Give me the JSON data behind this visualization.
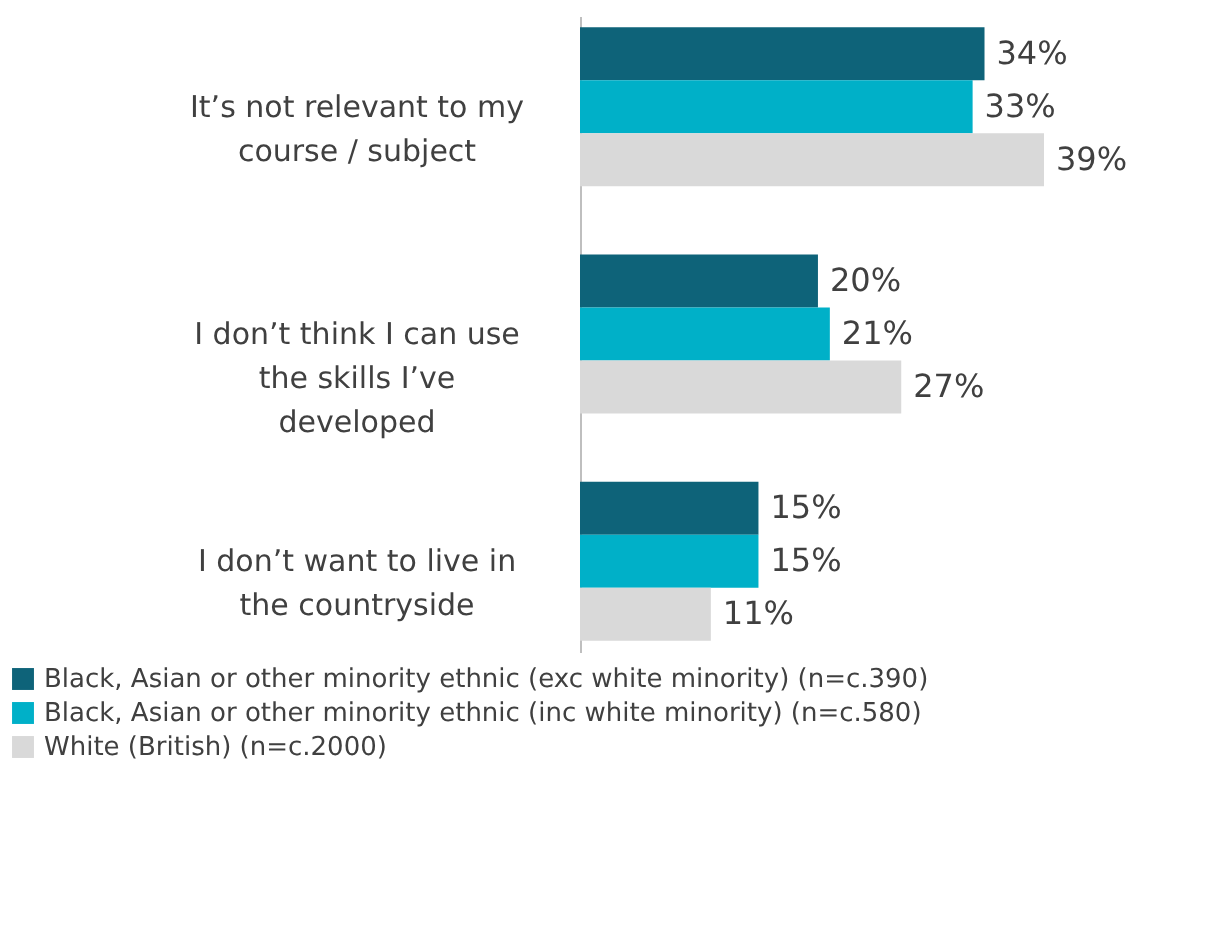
{
  "chart_data": {
    "type": "bar",
    "orientation": "horizontal",
    "categories": [
      "It’s not relevant to my course / subject",
      "I don’t think I can use the skills I’ve developed",
      "I don’t want to live in the countryside"
    ],
    "series": [
      {
        "name": "Black, Asian or other minority ethnic (exc white minority) (n=c.390)",
        "color": "#0e6379",
        "values": [
          34,
          20,
          15
        ],
        "value_labels": [
          "34%",
          "20%",
          "15%"
        ]
      },
      {
        "name": "Black, Asian or other minority ethnic (inc white minority) (n=c.580)",
        "color": "#00b0c8",
        "values": [
          33,
          21,
          15
        ],
        "value_labels": [
          "33%",
          "21%",
          "15%"
        ]
      },
      {
        "name": "White (British) (n=c.2000)",
        "color": "#d9d9d9",
        "values": [
          39,
          27,
          11
        ],
        "value_labels": [
          "39%",
          "27%",
          "11%"
        ]
      }
    ],
    "legend": "bottom"
  }
}
